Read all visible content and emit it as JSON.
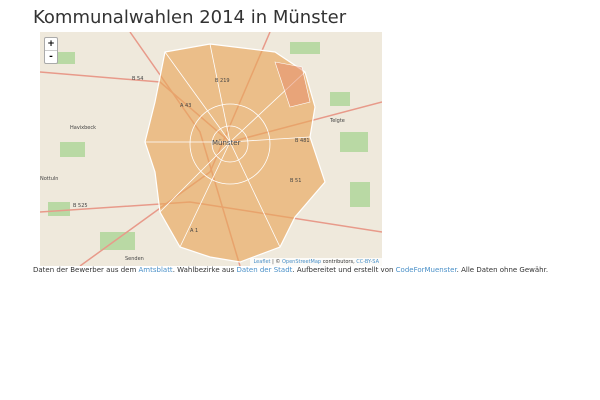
{
  "header": {
    "title": "Kommunalwahlen 2014 in Münster"
  },
  "map": {
    "zoom_in": "+",
    "zoom_out": "-",
    "labels": [
      "Havixbeck",
      "Telgte",
      "Münster",
      "Senden",
      "Nottuln",
      "B 54",
      "B 219",
      "B 525",
      "B 51",
      "A 1",
      "A 43",
      "B 481"
    ],
    "attribution": {
      "leaflet": "Leaflet",
      "separator": "| ©",
      "osm": "OpenStreetMap",
      "contributors": "contributors,",
      "license": "CC-BY-SA"
    }
  },
  "footer": {
    "t1": "Daten der Bewerber aus dem ",
    "link1": "Amtsblatt",
    "t2": ". Wahlbezirke aus ",
    "link2": "Daten der Stadt",
    "t3": ". Aufbereitet und erstellt von ",
    "link3": "CodeForMuenster",
    "t4": ". Alle Daten ohne Gewähr."
  }
}
